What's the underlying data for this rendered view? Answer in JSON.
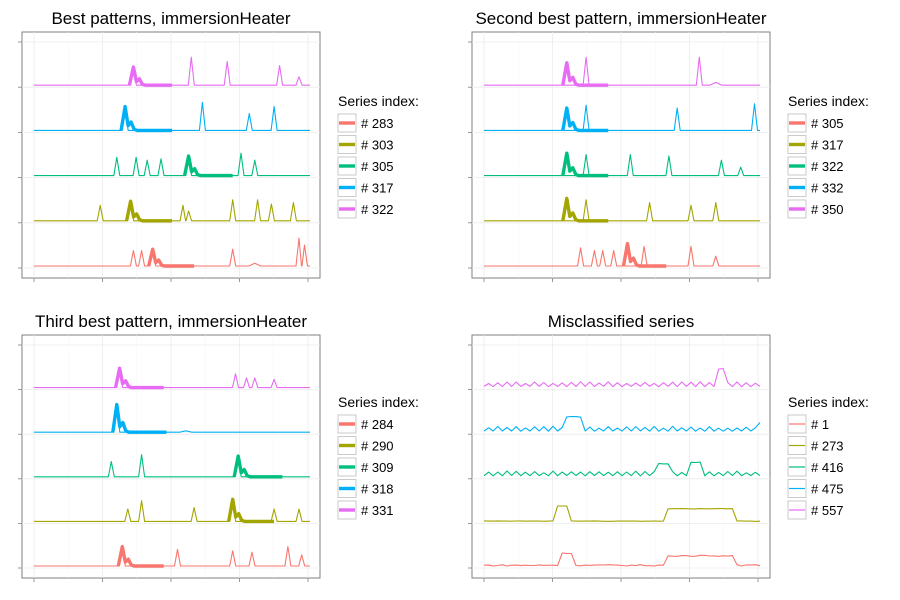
{
  "chart_data": [
    {
      "type": "line",
      "title": "Best patterns, immersionHeater",
      "legend_title": "Series index:",
      "legend_position": "right",
      "grid": true,
      "series": [
        {
          "name": "# 283",
          "color": "#F8766D",
          "spikes": [
            [
              0.36,
              0.55,
              0.35
            ],
            [
              0.39,
              0.55,
              0.35
            ],
            [
              0.43,
              0.6,
              0.95
            ],
            [
              0.72,
              0.6,
              0.35
            ],
            [
              0.96,
              1.0,
              0.35
            ],
            [
              0.98,
              0.75,
              0.35
            ]
          ],
          "pattern": [
            0.43,
            0.58
          ],
          "small": [
            [
              0.8,
              0.1
            ]
          ]
        },
        {
          "name": "# 303",
          "color": "#A3A500",
          "spikes": [
            [
              0.24,
              0.55,
              0.35
            ],
            [
              0.35,
              0.7,
              0.8
            ],
            [
              0.54,
              0.55,
              0.35
            ],
            [
              0.56,
              0.35,
              0.35
            ],
            [
              0.72,
              0.75,
              0.35
            ],
            [
              0.81,
              0.75,
              0.5
            ],
            [
              0.86,
              0.6,
              0.35
            ],
            [
              0.94,
              0.65,
              0.35
            ]
          ],
          "pattern": [
            0.35,
            0.5
          ],
          "small": []
        },
        {
          "name": "# 305",
          "color": "#00BF7D",
          "spikes": [
            [
              0.3,
              0.65,
              0.35
            ],
            [
              0.37,
              0.65,
              0.35
            ],
            [
              0.41,
              0.55,
              0.35
            ],
            [
              0.46,
              0.6,
              0.35
            ],
            [
              0.56,
              0.7,
              0.8
            ],
            [
              0.75,
              0.8,
              0.35
            ],
            [
              0.8,
              0.55,
              0.35
            ]
          ],
          "pattern": [
            0.56,
            0.72
          ],
          "small": []
        },
        {
          "name": "# 317",
          "color": "#00B0F6",
          "spikes": [
            [
              0.33,
              0.85,
              0.95
            ],
            [
              0.61,
              1.0,
              0.35
            ],
            [
              0.78,
              0.6,
              0.35
            ],
            [
              0.87,
              0.85,
              0.35
            ]
          ],
          "pattern": [
            0.33,
            0.5
          ],
          "small": []
        },
        {
          "name": "# 322",
          "color": "#E76BF3",
          "spikes": [
            [
              0.36,
              0.65,
              0.95
            ],
            [
              0.57,
              1.0,
              0.35
            ],
            [
              0.7,
              0.85,
              0.35
            ],
            [
              0.89,
              0.7,
              0.35
            ],
            [
              0.96,
              0.3,
              0.35
            ]
          ],
          "pattern": [
            0.36,
            0.5
          ],
          "small": []
        }
      ]
    },
    {
      "type": "line",
      "title": "Second best pattern, immersionHeater",
      "legend_title": "Series index:",
      "legend_position": "right",
      "grid": true,
      "series": [
        {
          "name": "# 305",
          "color": "#F8766D",
          "spikes": [
            [
              0.35,
              0.65,
              0.35
            ],
            [
              0.4,
              0.55,
              0.35
            ],
            [
              0.43,
              0.55,
              0.35
            ],
            [
              0.47,
              0.55,
              0.35
            ],
            [
              0.58,
              0.7,
              0.8
            ],
            [
              0.75,
              0.7,
              0.35
            ],
            [
              0.84,
              0.35,
              0.35
            ]
          ],
          "pattern": [
            0.52,
            0.66
          ],
          "small": []
        },
        {
          "name": "# 317",
          "color": "#A3A500",
          "spikes": [
            [
              0.37,
              0.75,
              0.9
            ],
            [
              0.6,
              0.65,
              0.35
            ],
            [
              0.75,
              0.55,
              0.35
            ],
            [
              0.84,
              0.65,
              0.5
            ]
          ],
          "pattern": [
            0.3,
            0.45
          ],
          "small": []
        },
        {
          "name": "# 322",
          "color": "#00BF7D",
          "spikes": [
            [
              0.37,
              0.75,
              0.9
            ],
            [
              0.53,
              0.75,
              0.35
            ],
            [
              0.67,
              0.7,
              0.35
            ],
            [
              0.86,
              0.55,
              0.35
            ],
            [
              0.93,
              0.3,
              0.35
            ]
          ],
          "pattern": [
            0.3,
            0.45
          ],
          "small": []
        },
        {
          "name": "# 332",
          "color": "#00B0F6",
          "spikes": [
            [
              0.37,
              0.9,
              0.9
            ],
            [
              0.7,
              0.8,
              0.35
            ],
            [
              0.98,
              0.95,
              0.35
            ]
          ],
          "pattern": [
            0.3,
            0.45
          ],
          "small": []
        },
        {
          "name": "# 350",
          "color": "#E76BF3",
          "spikes": [
            [
              0.37,
              1.0,
              0.9
            ],
            [
              0.78,
              1.0,
              0.35
            ]
          ],
          "pattern": [
            0.3,
            0.45
          ],
          "small": [
            [
              0.84,
              0.1
            ]
          ]
        }
      ]
    },
    {
      "type": "line",
      "title": "Third best pattern, immersionHeater",
      "legend_title": "Series index:",
      "legend_position": "right",
      "grid": true,
      "series": [
        {
          "name": "# 284",
          "color": "#F8766D",
          "spikes": [
            [
              0.32,
              0.7,
              0.9
            ],
            [
              0.52,
              0.6,
              0.35
            ],
            [
              0.72,
              0.55,
              0.35
            ],
            [
              0.79,
              0.5,
              0.35
            ],
            [
              0.92,
              0.7,
              0.35
            ],
            [
              0.97,
              0.4,
              0.35
            ]
          ],
          "pattern": [
            0.32,
            0.47
          ],
          "small": []
        },
        {
          "name": "# 290",
          "color": "#A3A500",
          "spikes": [
            [
              0.34,
              0.45,
              0.35
            ],
            [
              0.39,
              0.75,
              0.35
            ],
            [
              0.58,
              0.5,
              0.35
            ],
            [
              0.72,
              0.8,
              0.8
            ],
            [
              0.87,
              0.45,
              0.35
            ],
            [
              0.96,
              0.45,
              0.35
            ]
          ],
          "pattern": [
            0.72,
            0.87
          ],
          "small": []
        },
        {
          "name": "# 309",
          "color": "#00BF7D",
          "spikes": [
            [
              0.28,
              0.55,
              0.35
            ],
            [
              0.39,
              0.8,
              0.35
            ],
            [
              0.74,
              0.75,
              0.9
            ]
          ],
          "pattern": [
            0.74,
            0.9
          ],
          "small": []
        },
        {
          "name": "# 318",
          "color": "#00B0F6",
          "spikes": [
            [
              0.3,
              1.0,
              0.95
            ]
          ],
          "pattern": [
            0.3,
            0.48
          ],
          "small": [
            [
              0.55,
              0.05
            ]
          ]
        },
        {
          "name": "# 331",
          "color": "#E76BF3",
          "spikes": [
            [
              0.31,
              0.7,
              0.9
            ],
            [
              0.73,
              0.5,
              0.35
            ],
            [
              0.77,
              0.35,
              0.35
            ],
            [
              0.8,
              0.35,
              0.35
            ],
            [
              0.87,
              0.3,
              0.35
            ]
          ],
          "pattern": [
            0.31,
            0.47
          ],
          "small": []
        }
      ]
    },
    {
      "type": "line",
      "title": "Misclassified series",
      "legend_title": "Series index:",
      "legend_position": "right",
      "grid": true,
      "series": [
        {
          "name": "# 1",
          "color": "#F8766D",
          "style": "plateau",
          "plateaus": [
            [
              0.27,
              0.32,
              0.45
            ],
            [
              0.66,
              0.9,
              0.35
            ]
          ],
          "noise": 0.05
        },
        {
          "name": "# 273",
          "color": "#A3A500",
          "style": "plateau",
          "plateaus": [
            [
              0.26,
              0.3,
              0.55
            ],
            [
              0.66,
              0.9,
              0.45
            ]
          ],
          "noise": 0.02
        },
        {
          "name": "# 416",
          "color": "#00BF7D",
          "style": "wavy",
          "plateaus": [
            [
              0.63,
              0.67,
              0.45
            ],
            [
              0.74,
              0.79,
              0.45
            ]
          ],
          "noise": 0.12
        },
        {
          "name": "# 475",
          "color": "#00B0F6",
          "style": "wavy",
          "plateaus": [
            [
              0.3,
              0.36,
              0.5
            ]
          ],
          "noise": 0.12,
          "end": 0.35
        },
        {
          "name": "# 557",
          "color": "#E76BF3",
          "style": "wavy",
          "plateaus": [
            [
              0.84,
              0.88,
              0.65
            ]
          ],
          "noise": 0.12
        }
      ]
    }
  ]
}
